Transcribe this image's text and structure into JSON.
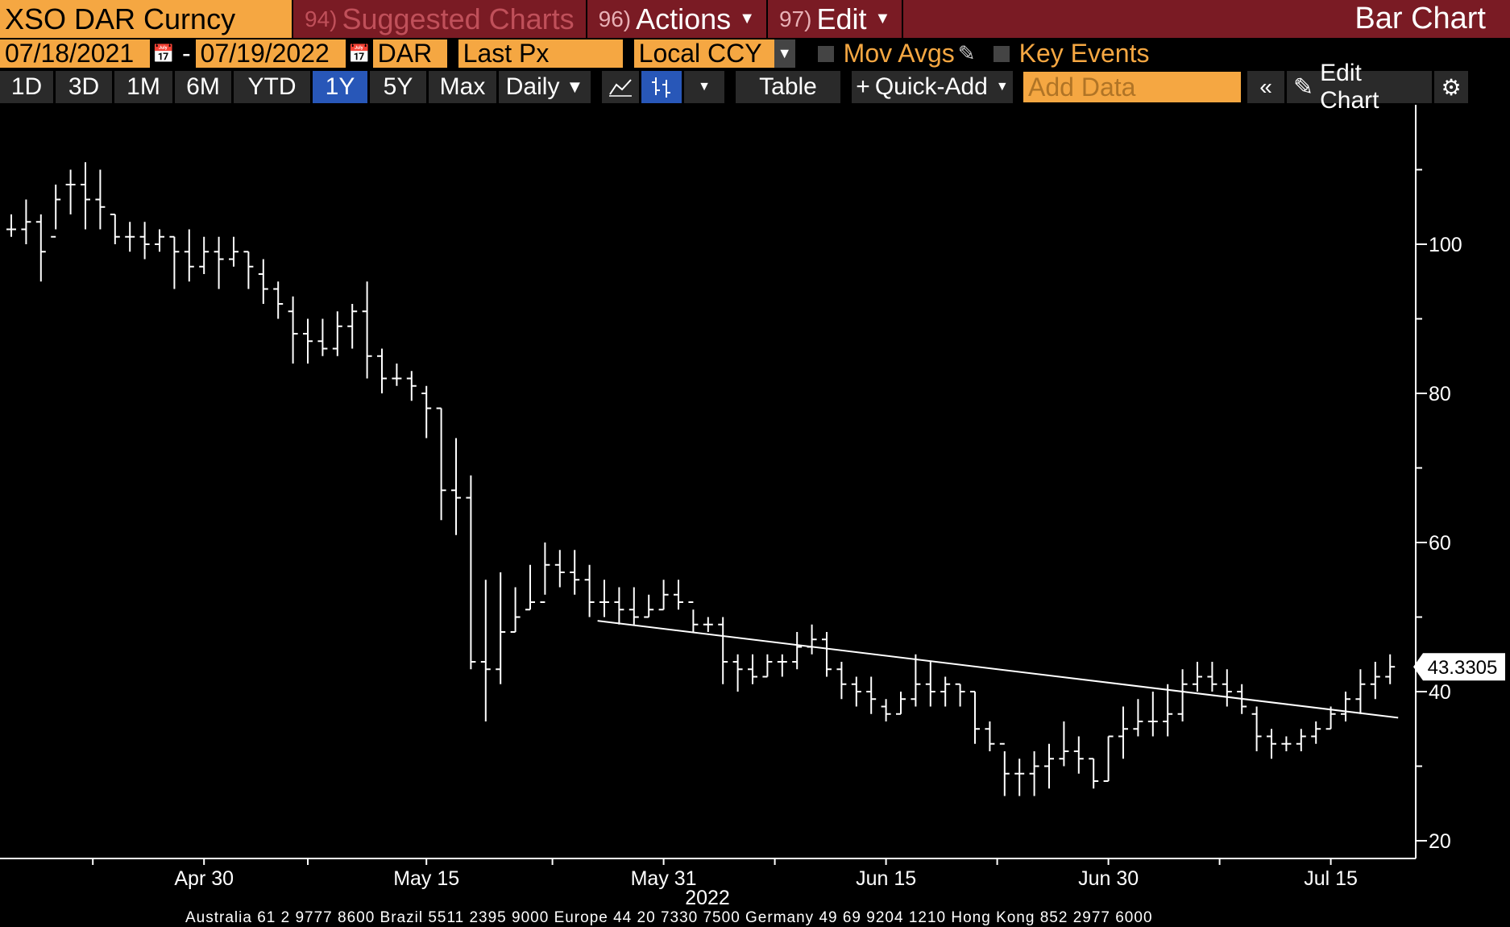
{
  "header": {
    "ticker": "XSO DAR Curncy",
    "suggested_num": "94)",
    "suggested_label": "Suggested Charts",
    "actions_num": "96)",
    "actions_label": "Actions",
    "edit_num": "97)",
    "edit_label": "Edit",
    "title": "Bar Chart"
  },
  "controls": {
    "start_date": "07/18/2021",
    "end_date": "07/19/2022",
    "security": "DAR",
    "field": "Last Px",
    "currency": "Local CCY",
    "mov_avgs": "Mov Avgs",
    "key_events": "Key Events"
  },
  "toolbar": {
    "ranges": [
      "1D",
      "3D",
      "1M",
      "6M",
      "YTD",
      "1Y",
      "5Y",
      "Max"
    ],
    "active_range": "1Y",
    "period": "Daily",
    "table": "Table",
    "quick_add": "Quick-Add",
    "add_data_placeholder": "Add Data",
    "edit_chart": "Edit Chart"
  },
  "footer": {
    "text": "Australia 61 2 9777 8600 Brazil 5511 2395 9000 Europe 44 20 7330 7500 Germany 49 69 9204 1210 Hong Kong 852 2977 6000"
  },
  "chart_data": {
    "type": "bar",
    "subtype": "ohlc",
    "colors": {
      "background": "#000000",
      "bars": "#ffffff",
      "trendline": "#ffffff",
      "last_price_box": "#ffffff"
    },
    "ylim": [
      18,
      122
    ],
    "yticks": [
      20,
      40,
      60,
      80,
      100
    ],
    "ymajor_step": 20,
    "yminor_step": 10,
    "xlabel": "2022",
    "xticks": [
      {
        "label": "Apr 30",
        "index": 13
      },
      {
        "label": "May 15",
        "index": 28
      },
      {
        "label": "May 31",
        "index": 44
      },
      {
        "label": "Jun 15",
        "index": 59
      },
      {
        "label": "Jun 30",
        "index": 74
      },
      {
        "label": "Jul 15",
        "index": 89
      }
    ],
    "x_index_range": [
      -0.5,
      93.5
    ],
    "last_price": "43.3305",
    "last_price_value": 43.33,
    "trendline": [
      [
        39,
        49.5
      ],
      [
        93,
        36.5
      ]
    ],
    "ohlc": [
      [
        102,
        104,
        101,
        102
      ],
      [
        102,
        106,
        100,
        103
      ],
      [
        103,
        104,
        95,
        99
      ],
      [
        101,
        108,
        102,
        106
      ],
      [
        108,
        110,
        104,
        108
      ],
      [
        108,
        111,
        102,
        106
      ],
      [
        106,
        110,
        102,
        105
      ],
      [
        104,
        104,
        100,
        101
      ],
      [
        101,
        103,
        99,
        101
      ],
      [
        101,
        103,
        98,
        100
      ],
      [
        100,
        102,
        99,
        101
      ],
      [
        101,
        101,
        94,
        99
      ],
      [
        99,
        102,
        95,
        97
      ],
      [
        97,
        101,
        96,
        99
      ],
      [
        99,
        101,
        94,
        98
      ],
      [
        98,
        101,
        97,
        99
      ],
      [
        99,
        99,
        94,
        97
      ],
      [
        96,
        98,
        92,
        94
      ],
      [
        94,
        95,
        90,
        92
      ],
      [
        91,
        93,
        84,
        88
      ],
      [
        88,
        90,
        84,
        87
      ],
      [
        87,
        90,
        85,
        86
      ],
      [
        86,
        91,
        85,
        89
      ],
      [
        89,
        92,
        86,
        91
      ],
      [
        91,
        95,
        82,
        85
      ],
      [
        85,
        86,
        80,
        82
      ],
      [
        82,
        84,
        81,
        82
      ],
      [
        82,
        83,
        79,
        81
      ],
      [
        80,
        81,
        74,
        78
      ],
      [
        78,
        78,
        63,
        67
      ],
      [
        67,
        74,
        61,
        66
      ],
      [
        66,
        69,
        43,
        44
      ],
      [
        44,
        55,
        36,
        43
      ],
      [
        43,
        56,
        41,
        48
      ],
      [
        48,
        54,
        48,
        50
      ],
      [
        51,
        57,
        51,
        52
      ],
      [
        52,
        60,
        53,
        57
      ],
      [
        57,
        59,
        54,
        56
      ],
      [
        56,
        59,
        53,
        55
      ],
      [
        55,
        57,
        50,
        52
      ],
      [
        52,
        55,
        50,
        52
      ],
      [
        52,
        54,
        49,
        51
      ],
      [
        51,
        54,
        49,
        50
      ],
      [
        50,
        53,
        50,
        51
      ],
      [
        51,
        55,
        51,
        53
      ],
      [
        53,
        55,
        51,
        52
      ],
      [
        52,
        51,
        48,
        49
      ],
      [
        49,
        50,
        48,
        49
      ],
      [
        49,
        50,
        41,
        44
      ],
      [
        44,
        45,
        40,
        43
      ],
      [
        43,
        45,
        41,
        42
      ],
      [
        42,
        45,
        42,
        44
      ],
      [
        44,
        45,
        42,
        44
      ],
      [
        44,
        48,
        43,
        46
      ],
      [
        46,
        49,
        45,
        47
      ],
      [
        47,
        48,
        42,
        43
      ],
      [
        43,
        44,
        39,
        41
      ],
      [
        41,
        42,
        38,
        40
      ],
      [
        40,
        42,
        37,
        39
      ],
      [
        38,
        39,
        36,
        37
      ],
      [
        37,
        40,
        37,
        39
      ],
      [
        39,
        45,
        38,
        41
      ],
      [
        41,
        44,
        38,
        40
      ],
      [
        40,
        42,
        38,
        41
      ],
      [
        41,
        41,
        38,
        40
      ],
      [
        40,
        40,
        33,
        35
      ],
      [
        35,
        36,
        32,
        33
      ],
      [
        33,
        32,
        26,
        29
      ],
      [
        29,
        31,
        26,
        29
      ],
      [
        29,
        32,
        26,
        30
      ],
      [
        30,
        33,
        27,
        31
      ],
      [
        31,
        36,
        30,
        32
      ],
      [
        32,
        34,
        29,
        31
      ],
      [
        31,
        31,
        27,
        28
      ],
      [
        28,
        34,
        28,
        34
      ],
      [
        34,
        38,
        31,
        35
      ],
      [
        35,
        39,
        34,
        36
      ],
      [
        36,
        40,
        34,
        36
      ],
      [
        36,
        41,
        34,
        37
      ],
      [
        37,
        43,
        36,
        41
      ],
      [
        41,
        44,
        40,
        42
      ],
      [
        42,
        44,
        40,
        41
      ],
      [
        41,
        43,
        38,
        40
      ],
      [
        40,
        41,
        37,
        38
      ],
      [
        37,
        38,
        32,
        34
      ],
      [
        34,
        35,
        31,
        33
      ],
      [
        33,
        34,
        32,
        33
      ],
      [
        33,
        35,
        32,
        34
      ],
      [
        34,
        36,
        33,
        35
      ],
      [
        35,
        38,
        35,
        37
      ],
      [
        37,
        40,
        36,
        39
      ],
      [
        39,
        43,
        37,
        41
      ],
      [
        41,
        44,
        39,
        42
      ],
      [
        42,
        45,
        41,
        43.33
      ]
    ]
  }
}
